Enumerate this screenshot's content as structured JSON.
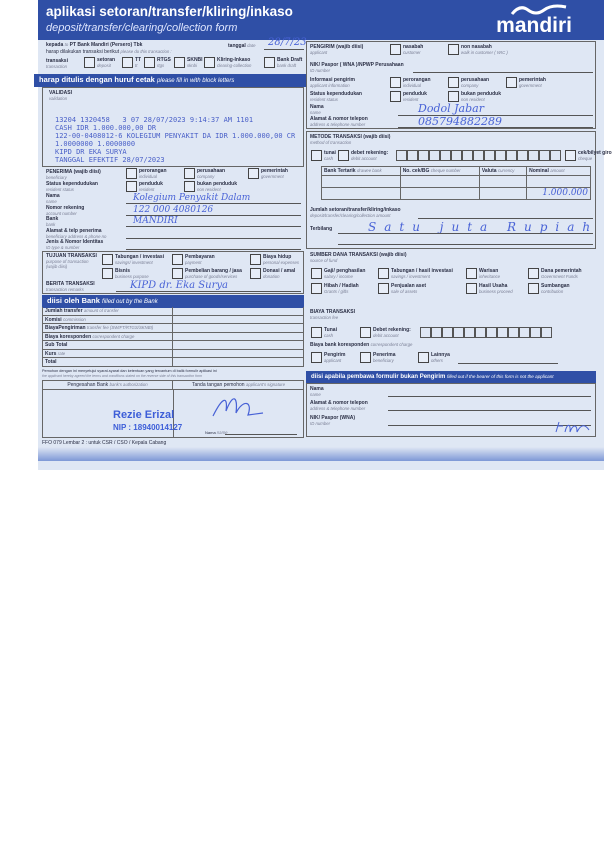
{
  "header": {
    "title": "aplikasi setoran/transfer/kliring/inkaso",
    "subtitle": "deposit/transfer/clearing/collection form",
    "brand": "mandiri"
  },
  "top": {
    "kepada": "kepada",
    "kepada_en": "to",
    "bank": "PT Bank Mandiri (Persero) Tbk",
    "harap": "harap dilakukan transaksi berikut",
    "harap_en": "please do this transaction :",
    "tanggal": "tanggal",
    "tanggal_en": "date",
    "date_value": "28/7/23",
    "transaksi": "transaksi",
    "transaksi_en": "transaction",
    "types": [
      {
        "l": "setoran",
        "e": "deposit"
      },
      {
        "l": "TT",
        "e": "tt"
      },
      {
        "l": "RTGS",
        "e": "rtgs"
      },
      {
        "l": "SKNBI",
        "e": "sknbi"
      },
      {
        "l": "Kliring-Inkaso",
        "e": "clearing-collection"
      },
      {
        "l": "Bank Draft",
        "e": "bank draft"
      }
    ]
  },
  "instruction": {
    "id": "harap ditulis dengan huruf cetak",
    "en": "please fill in with block letters"
  },
  "validation": {
    "label": "VALIDASI",
    "en": "validation",
    "lines": "13204 1320458   3 07 28/07/2023 9:14:37 AM 1101\nCASH IDR 1.000.000,00 DR\n122-00-0408012-6 KOLEGIUM PENYAKIT DA IDR 1.000.000,00 CR\n1.0000000 1.0000000\nKIPD DR EKA SURYA\nTANGGAL EFEKTIF 28/07/2023"
  },
  "beneficiary": {
    "title": "PENERIMA (wajib diisi)",
    "en": "beneficiary",
    "types": [
      {
        "l": "perorangan",
        "e": "individual"
      },
      {
        "l": "perusahaan",
        "e": "company"
      },
      {
        "l": "pemerintah",
        "e": "government"
      }
    ],
    "status_label": "Status kependudukan",
    "status_en": "resident status",
    "status": [
      {
        "l": "penduduk",
        "e": "resident"
      },
      {
        "l": "bukan penduduk",
        "e": "non resident"
      }
    ],
    "fields": [
      {
        "l": "Nama",
        "e": "name",
        "v": "Kolegium Penyakit Dalam"
      },
      {
        "l": "Nomor rekening",
        "e": "account number",
        "v": "122 000 4080126"
      },
      {
        "l": "Bank",
        "e": "bank",
        "v": "MANDIRI"
      },
      {
        "l": "Alamat & telp penerima",
        "e": "beneficiary address & phone no",
        "v": ""
      },
      {
        "l": "Jenis & Nomor Identitas",
        "e": "ID type & number",
        "v": ""
      }
    ]
  },
  "purpose": {
    "title": "TUJUAN TRANSAKSI",
    "en": "purpose of transaction",
    "req": "(wajib diisi)",
    "options": [
      {
        "l": "Tabungan / investasi",
        "e": "savings/ investment"
      },
      {
        "l": "Pembayaran",
        "e": "payment"
      },
      {
        "l": "Biaya hidup",
        "e": "personal expenses"
      },
      {
        "l": "Bisnis",
        "e": "business purpose"
      },
      {
        "l": "Pembelian barang / jasa",
        "e": "purchase of goods/services"
      },
      {
        "l": "Donasi / amal",
        "e": "donation"
      }
    ],
    "remarks_label": "BERITA TRANSAKSI",
    "remarks_en": "transaction remarks",
    "remarks": "KIPD dr. Eka Surya"
  },
  "bank_section": {
    "title": "diisi oleh Bank",
    "en": "filled out by the Bank",
    "rows": [
      {
        "l": "Jumlah transfer",
        "e": "amount of transfer"
      },
      {
        "l": "Komisi",
        "e": "commission"
      },
      {
        "l": "BiayaPengiriman",
        "e": "transfer fee (SWIFT/RTGS/SKNBI)"
      },
      {
        "l": "Biaya koresponden",
        "e": "correspondent charge"
      },
      {
        "l": "Sub Total",
        "e": ""
      },
      {
        "l": "Kurs",
        "e": "rate"
      },
      {
        "l": "Total",
        "e": ""
      }
    ]
  },
  "agreement": {
    "id": "Pemohon dengan ini menyetujui syarat-syarat dan ketentuan yang tercantum di balik formulir aplikasi ini",
    "en": "the applicant hereby agreed the terms and conditions stated on the reverse side of this transaction form"
  },
  "signatures": {
    "bank": "Pengesahan Bank",
    "bank_en": "bank's authorization",
    "applicant": "Tanda tangan pemohon",
    "applicant_en": "applicant's signature",
    "stamp_name": "Rezie Erizal",
    "stamp_nip": "NIP : 18940014127",
    "nama": "Nama",
    "nama_en": "name"
  },
  "applicant": {
    "title": "PENGIRIM (wajib diisi)",
    "en": "applicant",
    "cust": [
      {
        "l": "nasabah",
        "e": "customer"
      },
      {
        "l": "non nasabah",
        "e": "walk in customer ( WIC )"
      }
    ],
    "id_label": "NIK/ Paspor ( WNA )/NPWP Perusahaan",
    "id_en": "ID number",
    "info_label": "Informasi pengirim",
    "info_en": "applicant information",
    "types": [
      {
        "l": "perorangan",
        "e": "individual"
      },
      {
        "l": "perusahaan",
        "e": "company"
      },
      {
        "l": "pemerintah",
        "e": "government"
      }
    ],
    "status_label": "Status kependudukan",
    "status_en": "resident status",
    "status": [
      {
        "l": "penduduk",
        "e": "resident"
      },
      {
        "l": "bukan penduduk",
        "e": "non resident"
      }
    ],
    "name_label": "Nama",
    "name_en": "name",
    "name": "Dodol Jabar",
    "addr_label": "Alamat & nomor telepon",
    "addr_en": "address & telephone number",
    "addr": "085794882289"
  },
  "method": {
    "title": "METODE TRANSAKSI (wajib diisi)",
    "en": "method of transaction",
    "tunai": "tunai",
    "tunai_en": "cash",
    "debet": "debet rekening:",
    "debet_en": "debit account",
    "cek": "cek/bilyet giro",
    "cek_en": "cheque",
    "cols": [
      {
        "l": "Bank Tertarik",
        "e": "drawee bank"
      },
      {
        "l": "No. cek/BG",
        "e": "cheque number"
      },
      {
        "l": "Valuta",
        "e": "currency"
      },
      {
        "l": "Nominal",
        "e": "amount"
      }
    ],
    "nominal": "1.000.000",
    "amount_label": "Jumlah setoran/transfer/kliring/inkaso",
    "amount_en": "deposit/transfer/clearing/collection amount",
    "terbilang": "Terbilang",
    "terbilang_value": "Satu juta Rupiah"
  },
  "source": {
    "title": "SUMBER DANA TRANSAKSI (wajib diisi)",
    "en": "source of fund",
    "options": [
      {
        "l": "Gaji/ penghasilan",
        "e": "salary / income"
      },
      {
        "l": "Tabungan / hasil investasi",
        "e": "savings / investment"
      },
      {
        "l": "Warisan",
        "e": "inheritance"
      },
      {
        "l": "Dana pemerintah",
        "e": "Government Funds"
      },
      {
        "l": "Hibah / Hadiah",
        "e": "Grants / gifts"
      },
      {
        "l": "Penjualan aset",
        "e": "sale of assets"
      },
      {
        "l": "Hasil Usaha",
        "e": "business proceed"
      },
      {
        "l": "Sumbangan",
        "e": "contribution"
      }
    ]
  },
  "fee": {
    "title": "BIAYA TRANSAKSI",
    "en": "transaction fee",
    "tunai": "Tunai",
    "tunai_en": "cash",
    "debet": "Debet rekening:",
    "debet_en": "debit account",
    "corr": "Biaya bank koresponden",
    "corr_en": "correspondent charge",
    "opts": [
      {
        "l": "Pengirim",
        "e": "applicant"
      },
      {
        "l": "Penerima",
        "e": "beneficiary"
      },
      {
        "l": "Lainnya",
        "e": "others"
      }
    ]
  },
  "bearer": {
    "title": "diisi apabila pembawa formulir bukan Pengirim",
    "en": "filled out if the bearer of this form is not the applicant",
    "fields": [
      {
        "l": "Nama",
        "e": "name"
      },
      {
        "l": "Alamat & nomor telepon",
        "e": "address & telephone number"
      },
      {
        "l": "NIK/ Paspor (WNA)",
        "e": "ID number"
      }
    ]
  },
  "footer": "FFO 079 Lembar 2 : untuk CSR / CSO / Kepala Cabang"
}
